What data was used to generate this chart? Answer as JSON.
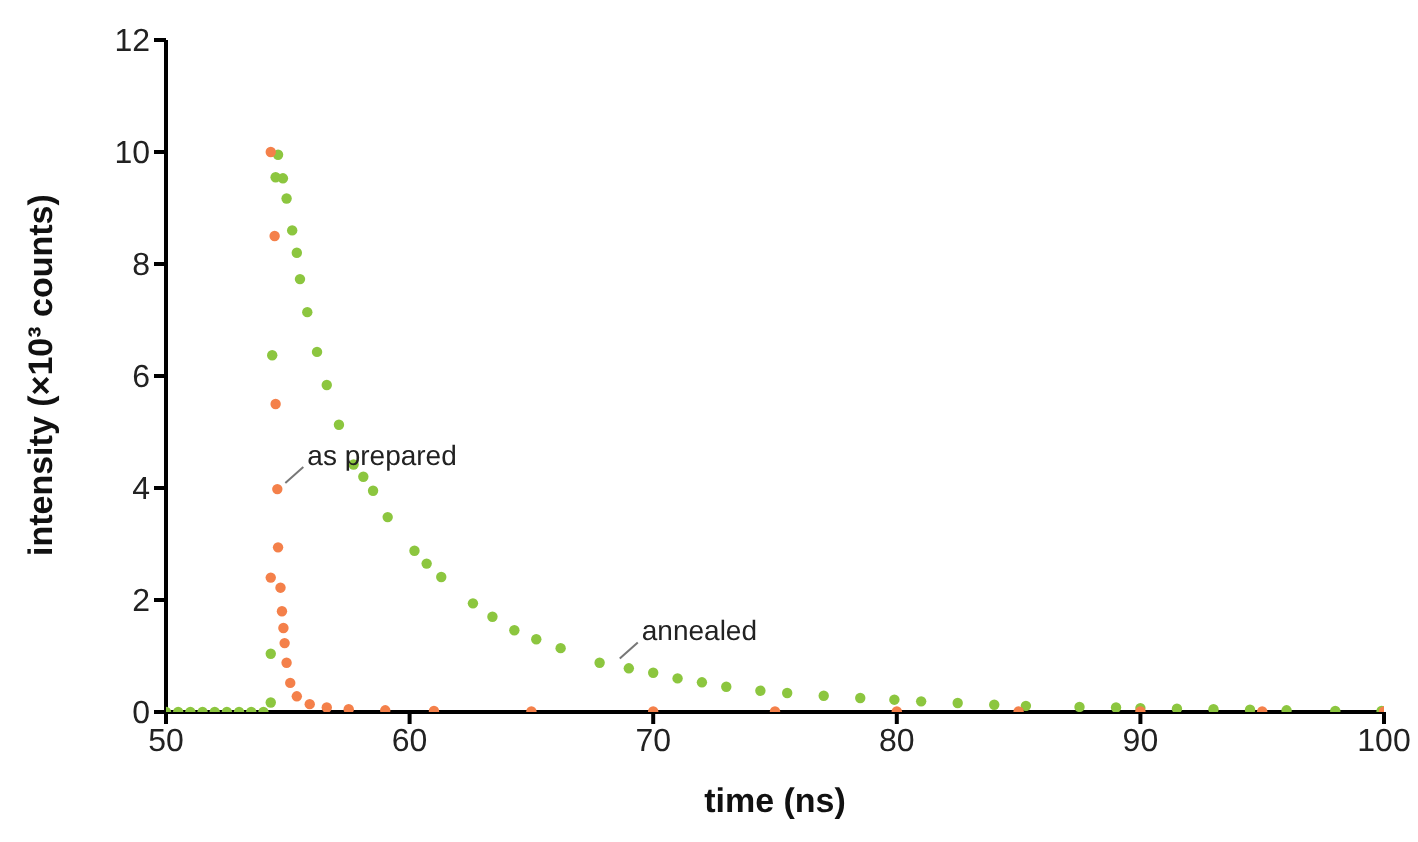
{
  "chart_data": {
    "type": "scatter",
    "xlabel": "time (ns)",
    "ylabel": "intensity (×10³ counts)",
    "xlim": [
      50,
      100
    ],
    "xticks": [
      50,
      60,
      70,
      80,
      90,
      100
    ],
    "ylim": [
      0,
      12
    ],
    "yticks": [
      0,
      2,
      4,
      6,
      8,
      10,
      12
    ],
    "grid": false,
    "legend": false,
    "marker": "circle",
    "series": [
      {
        "color": "#8cc63f",
        "x": [
          50,
          50.5,
          51,
          51.5,
          52,
          52.5,
          53,
          53.5,
          54,
          54.3,
          54.3,
          54.36,
          54.5,
          54.6,
          54.8,
          54.95,
          55.18,
          55.37,
          55.5,
          55.8,
          56.2,
          56.6,
          57.1,
          57.7,
          58.1,
          58.5,
          59.1,
          60.2,
          60.7,
          61.3,
          62.6,
          63.4,
          64.3,
          65.2,
          66.2,
          67.8,
          69,
          70,
          71,
          72,
          73,
          74.4,
          75.5,
          77,
          78.5,
          79.9,
          81,
          82.5,
          84,
          85.3,
          87.5,
          89,
          90,
          91.5,
          93,
          94.5,
          96,
          98,
          99.9
        ],
        "values": [
          0,
          0,
          0,
          0,
          0,
          0,
          0,
          0,
          0,
          0.17,
          1.04,
          6.37,
          9.55,
          9.95,
          9.53,
          9.17,
          8.6,
          8.2,
          7.73,
          7.14,
          6.43,
          5.84,
          5.13,
          4.42,
          4.2,
          3.95,
          3.48,
          2.88,
          2.65,
          2.41,
          1.94,
          1.7,
          1.46,
          1.3,
          1.14,
          0.88,
          0.78,
          0.7,
          0.6,
          0.53,
          0.45,
          0.38,
          0.34,
          0.29,
          0.25,
          0.22,
          0.19,
          0.16,
          0.13,
          0.11,
          0.09,
          0.08,
          0.07,
          0.06,
          0.05,
          0.04,
          0.03,
          0.02,
          0.02
        ]
      },
      {
        "color": "#f4804a",
        "x": [
          54.3,
          54.3,
          54.46,
          54.5,
          54.57,
          54.6,
          54.7,
          54.76,
          54.82,
          54.87,
          54.95,
          55.1,
          55.37,
          55.9,
          56.6,
          57.5,
          59,
          61,
          65,
          70,
          75,
          80,
          85,
          90,
          95,
          100
        ],
        "values": [
          10.0,
          2.4,
          8.5,
          5.5,
          3.98,
          2.94,
          2.22,
          1.8,
          1.5,
          1.23,
          0.88,
          0.52,
          0.28,
          0.14,
          0.08,
          0.05,
          0.03,
          0.02,
          0.01,
          0.01,
          0.01,
          0.01,
          0.01,
          0.01,
          0.01,
          0.01
        ]
      }
    ],
    "annotations": [
      {
        "text": "as prepared",
        "x": 54.57,
        "y": 3.98
      },
      {
        "text": "annealed",
        "x": 68.3,
        "y": 0.85
      }
    ]
  }
}
